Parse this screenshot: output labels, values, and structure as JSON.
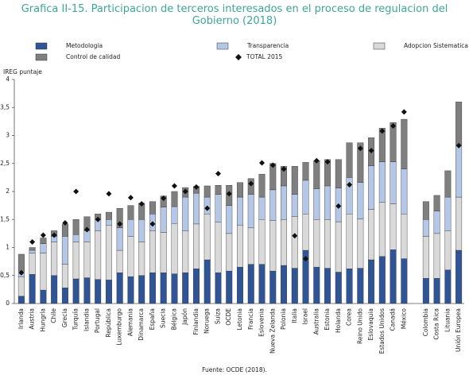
{
  "chart_data": {
    "type": "stacked_bar",
    "title": "Grafica II-15. Participacion de terceros interesados en el proceso de regulacion del Gobierno (2018)",
    "y_label": "IREG puntaje",
    "source": "Fuente: OCDE (2018).",
    "categories": [
      "Irlanda",
      "Austria",
      "Hungría",
      "Chile",
      "Grecia",
      "Turquía",
      "Islandia",
      "Portugal",
      "República",
      "Luxemburgo",
      "Alemania",
      "Dinamarca",
      "España",
      "Suecia",
      "Bélgica",
      "Japón",
      "Finlandia",
      "Noruega",
      "Suiza",
      "OCDE",
      "Letonia",
      "Francia",
      "Eslovenia",
      "Nueva Zelanda",
      "Polonia",
      "Italia",
      "Israel",
      "Australia",
      "Estonia",
      "Holanda",
      "Corea",
      "Reino Unido",
      "Eslovaquia",
      "Estados Unidos",
      "Canadá",
      "México",
      null,
      "Colombia",
      "Costa Rica",
      "Lituania",
      "Unión Europea"
    ],
    "series": [
      {
        "name": "Metodologia",
        "color": "#2f5597",
        "values": [
          0.13,
          0.52,
          0.24,
          0.5,
          0.28,
          0.44,
          0.46,
          0.43,
          0.42,
          0.55,
          0.48,
          0.5,
          0.55,
          0.55,
          0.53,
          0.55,
          0.62,
          0.78,
          0.55,
          0.58,
          0.65,
          0.7,
          0.7,
          0.58,
          0.68,
          0.63,
          0.95,
          0.65,
          0.63,
          0.56,
          0.62,
          0.63,
          0.78,
          0.84,
          0.96,
          0.8,
          null,
          0.45,
          0.45,
          0.6,
          0.95
        ]
      },
      {
        "name": "Adopcion Sistematica",
        "color": "#d9d9d9",
        "values": [
          0.35,
          0.38,
          0.66,
          0.6,
          0.42,
          0.66,
          0.64,
          0.87,
          0.98,
          0.4,
          0.72,
          0.6,
          0.75,
          0.72,
          0.9,
          0.75,
          0.8,
          0.82,
          0.9,
          0.67,
          0.75,
          0.65,
          0.8,
          0.9,
          0.82,
          0.92,
          0.65,
          0.85,
          0.87,
          0.9,
          0.98,
          0.88,
          0.9,
          0.97,
          0.82,
          0.8,
          null,
          0.75,
          0.8,
          0.7,
          0.95
        ]
      },
      {
        "name": "Transparencia",
        "color": "#b4c7e7",
        "values": [
          0.1,
          0.05,
          0.17,
          0.1,
          0.5,
          0.13,
          0.2,
          0.2,
          0.1,
          0.4,
          0.3,
          0.4,
          0.3,
          0.45,
          0.3,
          0.6,
          0.55,
          0.3,
          0.5,
          0.5,
          0.5,
          0.6,
          0.4,
          0.55,
          0.6,
          0.4,
          0.6,
          0.55,
          0.6,
          0.6,
          0.65,
          0.65,
          0.78,
          0.72,
          0.75,
          0.8,
          null,
          0.3,
          0.4,
          0.6,
          0.92
        ]
      },
      {
        "name": "Control de calidad",
        "color": "#7f7f7f",
        "values": [
          0.3,
          0.05,
          0.1,
          0.1,
          0.22,
          0.27,
          0.25,
          0.1,
          0.13,
          0.35,
          0.25,
          0.29,
          0.22,
          0.2,
          0.27,
          0.17,
          0.12,
          0.2,
          0.16,
          0.36,
          0.26,
          0.28,
          0.41,
          0.47,
          0.35,
          0.5,
          0.32,
          0.5,
          0.47,
          0.51,
          0.62,
          0.71,
          0.5,
          0.6,
          0.7,
          0.89,
          null,
          0.32,
          0.28,
          0.47,
          0.78
        ]
      }
    ],
    "total_2015": {
      "name": "TOTAL 2015",
      "color": "#111111",
      "values": [
        0.55,
        1.1,
        1.22,
        1.22,
        1.44,
        2.0,
        1.32,
        1.5,
        1.96,
        1.42,
        1.89,
        1.78,
        1.42,
        1.88,
        2.1,
        2.0,
        2.08,
        1.7,
        2.32,
        1.96,
        null,
        2.14,
        2.51,
        2.47,
        2.4,
        1.21,
        0.8,
        2.55,
        2.53,
        1.74,
        2.12,
        2.77,
        2.73,
        3.08,
        3.17,
        3.42,
        null,
        null,
        null,
        null,
        2.82
      ]
    },
    "ylim": [
      0,
      4
    ],
    "yticks": [
      0,
      {
        "value": 0.5,
        "label": "0,5"
      },
      1,
      {
        "value": 1.5,
        "label": "1,5"
      },
      2,
      {
        "value": 2.5,
        "label": "2,5"
      },
      3,
      {
        "value": 3.5,
        "label": "3,5"
      },
      4
    ]
  }
}
